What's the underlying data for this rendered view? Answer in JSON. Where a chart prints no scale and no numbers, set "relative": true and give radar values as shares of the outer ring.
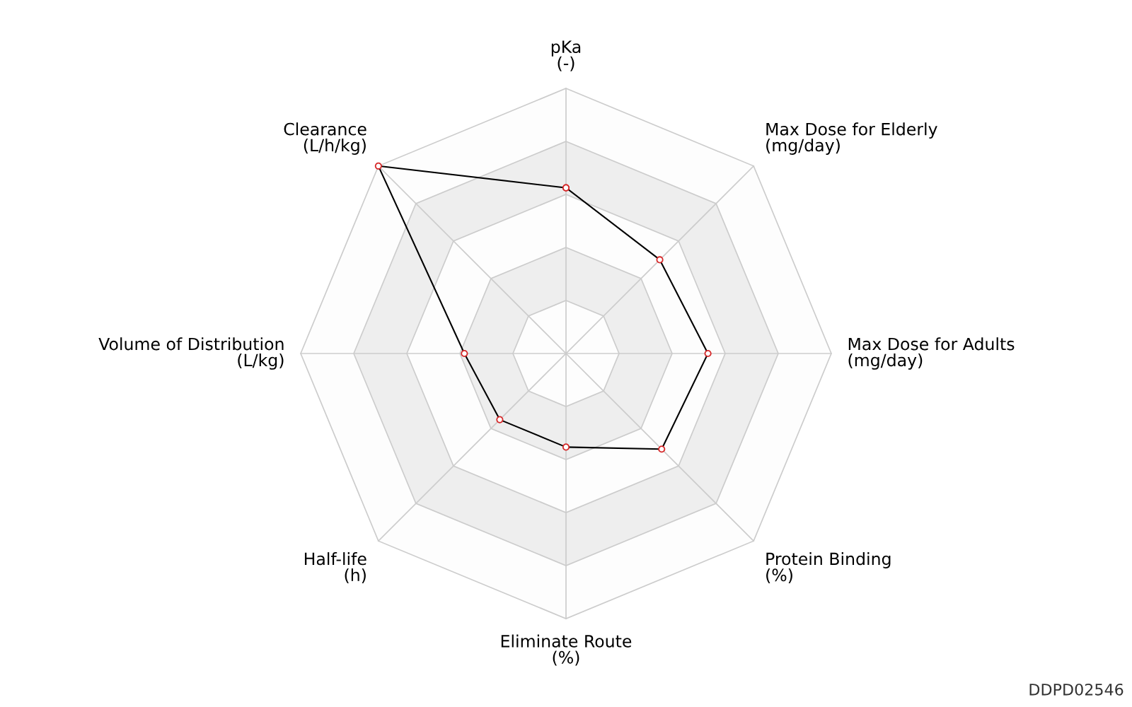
{
  "chart_data": {
    "type": "radar",
    "relative": true,
    "categories": [
      "pKa\n(-)",
      "Max Dose for Elderly\n(mg/day)",
      "Max Dose for Adults\n(mg/day)",
      "Protein Binding\n(%)",
      "Eliminate Route\n(%)",
      "Half-life\n(h)",
      "Volume of Distribution\n(L/kg)",
      "Clearance\n(L/h/kg)"
    ],
    "series": [
      {
        "color": "#000000",
        "values": [
          0.625,
          0.5,
          0.535,
          0.51,
          0.353,
          0.353,
          0.383,
          1.0
        ]
      }
    ],
    "marker": "circle",
    "grid": true,
    "annotations": [
      "DDPD02546"
    ]
  }
}
